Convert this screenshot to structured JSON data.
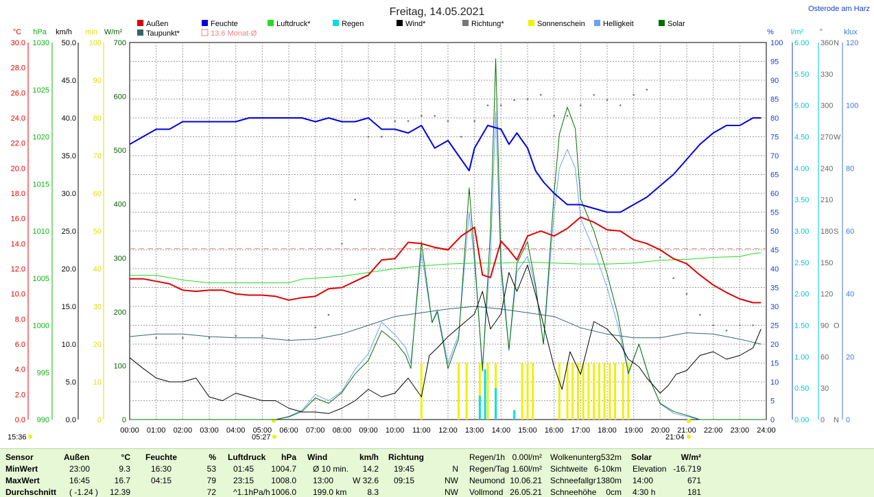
{
  "title": "Freitag, 14.05.2021",
  "location": "Osterode am Harz",
  "legend": [
    {
      "name": "Außen",
      "color": "#e00000"
    },
    {
      "name": "Feuchte",
      "color": "#0000e0"
    },
    {
      "name": "Luftdruck*",
      "color": "#22dd22"
    },
    {
      "name": "Regen",
      "color": "#00e0e0"
    },
    {
      "name": "Wind*",
      "color": "#000000"
    },
    {
      "name": "Richtung*",
      "color": "#777777"
    },
    {
      "name": "Sonnenschein",
      "color": "#f0f000"
    },
    {
      "name": "Helligkeit",
      "color": "#6aa0ff"
    },
    {
      "name": "Solar",
      "color": "#007000"
    },
    {
      "name": "Taupunkt*",
      "color": "#336666"
    },
    {
      "name": "13.6 Monat-Ø",
      "color": "#f08080"
    }
  ],
  "axis_units": {
    "temp": "°C",
    "hpa": "hPa",
    "kmh": "km/h",
    "min": "min",
    "wm2": "W/m²",
    "pct": "%",
    "lm2": "l/m²",
    "deg": "°",
    "klux": "klux"
  },
  "axis_ticks": {
    "temp": [
      "0.0",
      "2.0",
      "4.0",
      "6.0",
      "8.0",
      "10.0",
      "12.0",
      "14.0",
      "16.0",
      "18.0",
      "20.0",
      "22.0",
      "24.0",
      "26.0",
      "28.0",
      "30.0"
    ],
    "hpa": [
      "990",
      "995",
      "1000",
      "1005",
      "1010",
      "1015",
      "1020",
      "1025",
      "1030"
    ],
    "kmh": [
      "0.0",
      "5.0",
      "10.0",
      "15.0",
      "20.0",
      "25.0",
      "30.0",
      "35.0",
      "40.0",
      "45.0",
      "50.0"
    ],
    "min": [
      "0",
      "10",
      "20",
      "30",
      "40",
      "50",
      "60",
      "70",
      "80",
      "90",
      "100"
    ],
    "wm2": [
      "0",
      "100",
      "200",
      "300",
      "400",
      "500",
      "600",
      "700"
    ],
    "pct": [
      "0",
      "5",
      "10",
      "15",
      "20",
      "25",
      "30",
      "35",
      "40",
      "45",
      "50",
      "55",
      "60",
      "65",
      "70",
      "75",
      "80",
      "85",
      "90",
      "95",
      "100"
    ],
    "lm2": [
      "0.00",
      "0.50",
      "1.00",
      "1.50",
      "2.00",
      "2.50",
      "3.00",
      "3.50",
      "4.00",
      "4.50",
      "5.00",
      "5.50",
      "6.00"
    ],
    "deg": [
      "0",
      "30",
      "60",
      "90",
      "120",
      "150",
      "180",
      "210",
      "240",
      "270",
      "300",
      "330",
      "360"
    ],
    "deg_dirs": [
      "N",
      "O",
      "S",
      "W",
      "N"
    ],
    "klux": [
      "0",
      "20",
      "40",
      "60",
      "80",
      "100",
      "120"
    ],
    "hours": [
      "00:00",
      "01:00",
      "02:00",
      "03:00",
      "04:00",
      "05:00",
      "06:00",
      "07:00",
      "08:00",
      "09:00",
      "10:00",
      "11:00",
      "12:00",
      "13:00",
      "14:00",
      "15:00",
      "16:00",
      "17:00",
      "18:00",
      "19:00",
      "20:00",
      "21:00",
      "22:00",
      "23:00",
      "24:00"
    ]
  },
  "markers": {
    "now": "15:36",
    "sunrise": "05:27",
    "sunset": "21:04"
  },
  "chart_data": {
    "type": "line",
    "title": "Freitag, 14.05.2021",
    "xlim": [
      0,
      24
    ],
    "monthly_avg_temp": 13.6,
    "series": [
      {
        "name": "Außen",
        "axis": "temp",
        "x": [
          0,
          0.5,
          1,
          1.5,
          2,
          2.5,
          3,
          3.5,
          4,
          4.5,
          5,
          5.5,
          6,
          6.5,
          7,
          7.5,
          8,
          8.5,
          9,
          9.5,
          10,
          10.5,
          11,
          11.5,
          12,
          12.5,
          13,
          13.3,
          13.6,
          14,
          14.3,
          14.6,
          15,
          15.5,
          16,
          16.5,
          17,
          17.5,
          18,
          18.5,
          19,
          19.5,
          20,
          20.5,
          21,
          21.5,
          22,
          22.5,
          23,
          23.5,
          23.8
        ],
        "values": [
          11.2,
          11.2,
          11.0,
          10.8,
          10.3,
          10.2,
          10.3,
          10.3,
          10.0,
          9.9,
          9.9,
          9.8,
          9.5,
          9.7,
          9.8,
          10.4,
          10.5,
          11.0,
          11.5,
          12.7,
          12.8,
          14.1,
          14.0,
          13.7,
          13.5,
          14.6,
          15.3,
          11.5,
          11.3,
          14.2,
          13.5,
          12.7,
          14.6,
          15.0,
          14.6,
          15.2,
          16.1,
          15.7,
          15.1,
          15.0,
          14.3,
          14.0,
          13.5,
          12.8,
          12.4,
          11.5,
          10.7,
          10.1,
          9.6,
          9.3,
          9.3
        ]
      },
      {
        "name": "Feuchte",
        "axis": "pct",
        "x": [
          0,
          0.5,
          1,
          1.5,
          2,
          2.5,
          3,
          3.5,
          4,
          4.5,
          5,
          5.5,
          6,
          6.5,
          7,
          7.5,
          8,
          8.5,
          9,
          9.5,
          10,
          10.5,
          11,
          11.5,
          12,
          12.5,
          12.8,
          13,
          13.5,
          14,
          14.3,
          14.6,
          15,
          15.3,
          15.6,
          16,
          16.5,
          17,
          17.5,
          18,
          18.5,
          19,
          19.5,
          20,
          20.5,
          21,
          21.5,
          22,
          22.5,
          23,
          23.5,
          23.8
        ],
        "values": [
          73,
          75,
          77,
          77,
          79,
          79,
          79,
          79,
          79,
          80,
          80,
          80,
          80,
          80,
          79,
          80,
          79,
          79,
          80,
          77,
          77,
          76,
          78,
          72,
          74,
          69,
          66,
          72,
          78,
          77,
          73,
          76,
          72,
          66,
          63,
          60,
          57,
          57,
          56,
          55,
          55,
          57,
          59,
          62,
          65,
          69,
          73,
          76,
          78,
          78,
          80,
          80
        ]
      },
      {
        "name": "Luftdruck*",
        "axis": "hpa",
        "x": [
          0,
          1,
          2,
          3,
          4,
          5,
          6,
          6.5,
          7,
          8,
          9,
          10,
          11,
          12,
          13,
          14,
          15,
          16,
          17,
          18,
          19,
          20,
          21,
          22,
          23,
          23.5,
          23.8
        ],
        "values": [
          1005.3,
          1005.3,
          1004.8,
          1004.5,
          1004.5,
          1004.5,
          1004.5,
          1004.9,
          1005.0,
          1005.2,
          1005.6,
          1006.0,
          1006.3,
          1006.5,
          1006.6,
          1006.6,
          1006.7,
          1006.6,
          1006.5,
          1006.5,
          1006.6,
          1006.9,
          1007.0,
          1007.2,
          1007.3,
          1007.6,
          1007.7
        ]
      },
      {
        "name": "Wind*",
        "axis": "kmh",
        "x": [
          0,
          0.5,
          1,
          1.5,
          2,
          2.5,
          3,
          3.5,
          4,
          4.5,
          5,
          5.5,
          6,
          6.5,
          7,
          7.5,
          8,
          8.5,
          9,
          9.5,
          10,
          10.5,
          11,
          11.3,
          11.6,
          12,
          12.5,
          13,
          13.3,
          13.6,
          14,
          14.3,
          14.6,
          15,
          15.5,
          16,
          16.3,
          16.6,
          17,
          17.5,
          18,
          18.5,
          18.8,
          19.2,
          19.5,
          20,
          20.3,
          20.6,
          21,
          21.5,
          22,
          22.5,
          23,
          23.5,
          23.8
        ],
        "values": [
          8.2,
          6.8,
          5.5,
          5.0,
          5.0,
          5.5,
          3.0,
          2.5,
          3.5,
          3.0,
          2.5,
          2.5,
          1.5,
          1.0,
          1.0,
          0.8,
          1.5,
          2.5,
          4.0,
          3.0,
          3.5,
          5.5,
          3.0,
          8.5,
          9.5,
          11.0,
          12.5,
          14.0,
          17.0,
          12.0,
          14.0,
          19.5,
          17.0,
          20.5,
          14.0,
          7.0,
          4.0,
          9.0,
          6.0,
          13.0,
          12.0,
          10.0,
          8.0,
          7.0,
          5.5,
          3.5,
          4.5,
          6.0,
          6.5,
          8.5,
          9.0,
          8.0,
          8.5,
          9.5,
          12.0
        ]
      },
      {
        "name": "Richtung*",
        "axis": "deg",
        "x": [
          0,
          1,
          2,
          3,
          4,
          5,
          6,
          7,
          7.5,
          8,
          8.5,
          9,
          9.5,
          10,
          10.5,
          11,
          11.5,
          12,
          12.5,
          13,
          13.5,
          14,
          14.5,
          15,
          15.5,
          16,
          16.5,
          17,
          17.5,
          18,
          18.5,
          19,
          19.5,
          20,
          20.5,
          21,
          21.5,
          22,
          22.5,
          23,
          23.5
        ],
        "values": [
          75,
          78,
          78,
          78,
          80,
          80,
          76,
          88,
          100,
          168,
          210,
          270,
          270,
          285,
          285,
          290,
          290,
          285,
          270,
          285,
          300,
          300,
          305,
          306,
          310,
          290,
          290,
          300,
          310,
          305,
          300,
          310,
          315,
          155,
          135,
          120,
          100,
          90,
          85,
          90,
          90
        ]
      },
      {
        "name": "Taupunkt*",
        "axis": "temp",
        "x": [
          0,
          1,
          2,
          3,
          4,
          5,
          6,
          7,
          8,
          9,
          10,
          11,
          12,
          13,
          14,
          15,
          16,
          17,
          18,
          19,
          20,
          21,
          22,
          23,
          23.8
        ],
        "values": [
          6.6,
          6.8,
          6.8,
          6.6,
          6.5,
          6.5,
          6.3,
          6.4,
          6.8,
          7.5,
          8.2,
          8.5,
          8.8,
          9.0,
          8.8,
          8.5,
          8.2,
          7.3,
          6.8,
          6.5,
          6.5,
          6.9,
          6.8,
          6.4,
          6.0
        ]
      },
      {
        "name": "Solar",
        "axis": "wm2",
        "x": [
          0,
          5.5,
          6,
          6.5,
          7,
          7.5,
          8,
          8.5,
          9,
          9.5,
          10,
          10.4,
          10.6,
          11,
          11.4,
          11.6,
          12,
          12.4,
          12.8,
          13,
          13.3,
          13.6,
          13.8,
          14,
          14.3,
          14.6,
          15,
          15.3,
          15.6,
          16,
          16.2,
          16.5,
          16.8,
          17,
          17.5,
          18,
          18.4,
          18.8,
          19.2,
          19.6,
          20,
          20.5,
          21,
          21.5,
          22,
          24
        ],
        "values": [
          0,
          0,
          5,
          15,
          40,
          30,
          50,
          85,
          110,
          165,
          145,
          120,
          95,
          330,
          180,
          200,
          95,
          150,
          430,
          305,
          90,
          350,
          670,
          290,
          130,
          290,
          330,
          250,
          140,
          420,
          530,
          580,
          540,
          410,
          350,
          270,
          195,
          85,
          140,
          75,
          30,
          15,
          8,
          0,
          0,
          0
        ]
      },
      {
        "name": "Helligkeit",
        "axis": "klux",
        "x": [
          0,
          5.5,
          6,
          6.5,
          7,
          7.5,
          8,
          8.5,
          9,
          9.5,
          10,
          10.4,
          10.6,
          11,
          11.4,
          11.6,
          12,
          12.4,
          12.8,
          13,
          13.3,
          13.6,
          13.8,
          14,
          14.3,
          14.6,
          15,
          15.3,
          15.6,
          16,
          16.2,
          16.5,
          16.8,
          17,
          17.5,
          18,
          18.4,
          18.8,
          19.2,
          19.6,
          20,
          20.5,
          21,
          21.5,
          22,
          24
        ],
        "values": [
          0,
          0,
          1,
          3,
          8,
          6,
          9,
          16,
          21,
          31,
          27,
          23,
          18,
          53,
          31,
          35,
          18,
          27,
          66,
          50,
          17,
          52,
          98,
          47,
          22,
          47,
          52,
          42,
          24,
          66,
          80,
          86,
          80,
          64,
          54,
          42,
          30,
          15,
          24,
          13,
          5,
          2,
          1,
          0,
          0,
          0
        ]
      },
      {
        "name": "Sonnenschein",
        "axis": "min",
        "type": "bar",
        "x": [
          11,
          12.4,
          12.7,
          13.2,
          13.5,
          13.8,
          14.8,
          15.0,
          15.2,
          16.2,
          16.5,
          16.7,
          16.9,
          17.1,
          17.3,
          17.5,
          17.7,
          17.9,
          18.1,
          18.3,
          18.6,
          18.8
        ],
        "values": [
          15,
          15,
          15,
          15,
          15,
          15,
          15,
          15,
          15,
          15,
          15,
          15,
          15,
          15,
          15,
          15,
          15,
          15,
          15,
          15,
          15,
          15
        ]
      },
      {
        "name": "Regen",
        "axis": "lm2",
        "type": "bar",
        "x": [
          13.2,
          13.4,
          13.8,
          14.5
        ],
        "values": [
          0.38,
          0.8,
          0.5,
          0.15
        ]
      }
    ]
  },
  "stats": {
    "cols": [
      {
        "header": "Sensor",
        "rows": [
          "MinWert",
          "MaxWert",
          "Durchschnitt"
        ]
      },
      {
        "header": "Außen",
        "unit": "°C",
        "time": [
          "23:00",
          "16:45",
          "( -1.24 )"
        ],
        "val": [
          "9.3",
          "16.7",
          "12.39"
        ]
      },
      {
        "header": "Feuchte",
        "unit": "%",
        "time": [
          "16:30",
          "04:15",
          ""
        ],
        "val": [
          "53",
          "79",
          "72"
        ]
      },
      {
        "header": "Luftdruck",
        "unit": "hPa",
        "time": [
          "01:45",
          "23:15",
          "^1.1hPa/h"
        ],
        "val": [
          "1004.7",
          "1008.0",
          "1006.0"
        ]
      },
      {
        "header": "Wind",
        "unit": "km/h",
        "time": [
          "Ø 10 min.",
          "13:00",
          "199.0 km"
        ],
        "val": [
          "14.2",
          "W 32.6",
          "8.3"
        ]
      },
      {
        "header": "Richtung",
        "unit": "",
        "time": [
          "19:45",
          "09:15",
          ""
        ],
        "val": [
          "N",
          "NW",
          "NW"
        ]
      }
    ],
    "rain": [
      [
        "Regen/1h",
        "0.00l/m²"
      ],
      [
        "Regen/Tag",
        "1.60l/m²"
      ],
      [
        "Neumond",
        "10.06.21"
      ],
      [
        "Vollmond",
        "26.05.21"
      ]
    ],
    "cloud": [
      [
        "Wolkenunterg",
        "532m"
      ],
      [
        "Sichtweite",
        "6-10km"
      ],
      [
        "Schneefallgr",
        "1380m"
      ],
      [
        "Schneehöhe",
        "0cm"
      ]
    ],
    "solar": {
      "header": "Solar",
      "unit": "W/m²",
      "rows": [
        [
          "Elevation",
          "-16.719"
        ],
        [
          "14:00",
          "671"
        ],
        [
          "4:30 h",
          "181"
        ]
      ]
    }
  }
}
